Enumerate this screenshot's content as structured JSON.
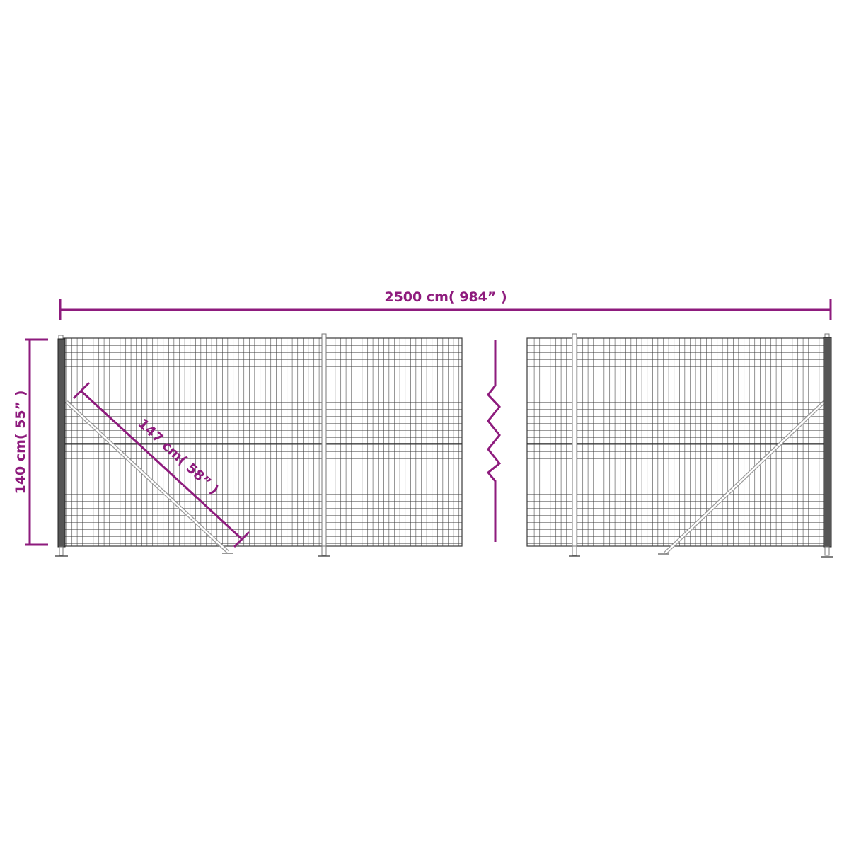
{
  "diagram": {
    "width_label": "2500 cm( 984” )",
    "height_label": "140 cm( 55” )",
    "brace_label": "147 cm( 58” )",
    "colors": {
      "dimension": "#8e1b7d",
      "mesh": "#3a3a3a",
      "post": "#444444",
      "brace": "#9a9a9a"
    }
  }
}
